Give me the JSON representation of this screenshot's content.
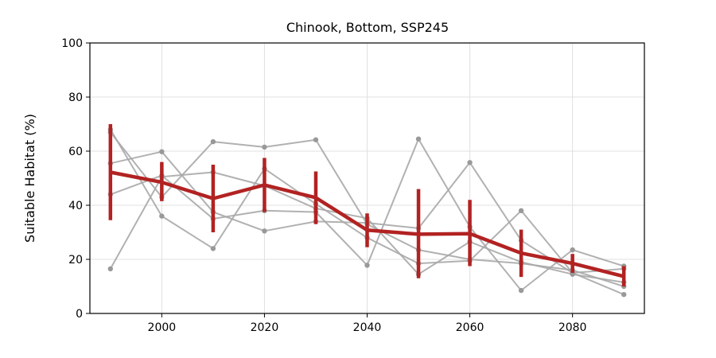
{
  "chart_data": {
    "type": "line",
    "title": "Chinook, Bottom, SSP245",
    "xlabel": "",
    "ylabel": "Suitable Habitat (%)",
    "xlim": [
      1986,
      2094
    ],
    "ylim": [
      0,
      100
    ],
    "xticks": [
      2000,
      2020,
      2040,
      2060,
      2080
    ],
    "yticks": [
      0,
      20,
      40,
      60,
      80,
      100
    ],
    "grid": true,
    "x": [
      1990,
      2000,
      2010,
      2020,
      2030,
      2040,
      2050,
      2060,
      2070,
      2080,
      2090
    ],
    "members": [
      {
        "values": [
          16.5,
          50.5,
          52.2,
          47.2,
          38.8,
          35.2,
          14.5,
          26.5,
          19.0,
          14.5,
          11.5
        ]
      },
      {
        "values": [
          44.0,
          51.0,
          35.0,
          38.0,
          37.5,
          17.8,
          64.5,
          32.0,
          8.5,
          23.5,
          17.5
        ]
      },
      {
        "values": [
          55.5,
          59.8,
          37.5,
          30.5,
          34.0,
          33.5,
          31.5,
          55.8,
          27.0,
          15.0,
          16.5
        ]
      },
      {
        "values": [
          67.0,
          43.0,
          63.5,
          61.5,
          64.2,
          33.0,
          23.5,
          20.0,
          18.5,
          16.0,
          10.0
        ]
      },
      {
        "values": [
          68.0,
          36.0,
          24.0,
          53.5,
          40.5,
          28.0,
          18.5,
          19.5,
          38.0,
          15.0,
          7.0
        ]
      }
    ],
    "mean": {
      "values": [
        52.2,
        48.5,
        42.5,
        47.5,
        42.8,
        30.8,
        29.3,
        29.5,
        22.3,
        18.5,
        13.7
      ],
      "err_low": [
        34.5,
        41.5,
        30.0,
        37.5,
        33.0,
        24.5,
        13.0,
        17.5,
        13.5,
        15.0,
        10.0
      ],
      "err_high": [
        70.0,
        56.0,
        55.0,
        57.5,
        52.5,
        37.0,
        46.0,
        42.0,
        31.0,
        22.0,
        17.5
      ]
    },
    "colors": {
      "members": "#a9a9a9",
      "mean": "#b22222"
    }
  }
}
